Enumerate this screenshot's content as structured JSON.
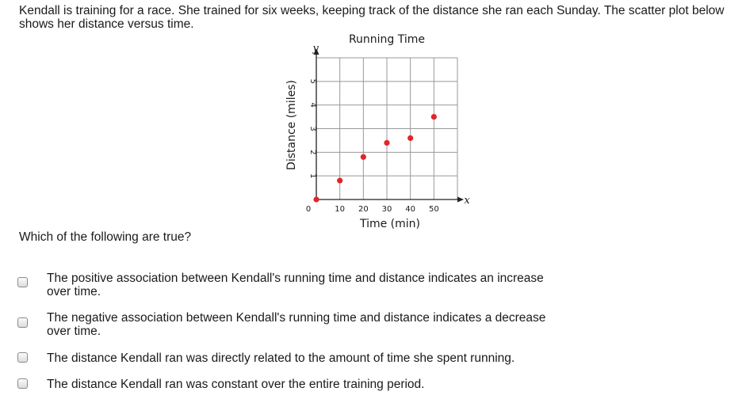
{
  "question": "Kendall is training for a race.  She trained for six weeks, keeping track of the distance she ran each Sunday.  The scatter plot below shows her distance versus time.",
  "prompt": "Which of the following are true?",
  "options": [
    "The positive association between Kendall's running time and distance indicates an increase over time.",
    "The negative association between Kendall's running time and distance indicates a decrease over time.",
    "The distance Kendall ran was directly related to the amount of time she spent running.",
    "The distance Kendall ran was constant over the entire training period."
  ],
  "colors": {
    "point": "#e0262a",
    "grid": "#999999",
    "axis": "#222222"
  },
  "chart_data": {
    "type": "scatter",
    "title": "Running Time",
    "xlabel": "Time (min)",
    "ylabel": "Distance (miles)",
    "x_var": "x",
    "y_var": "y",
    "xlim": [
      0,
      60
    ],
    "ylim": [
      0,
      6
    ],
    "x_ticks": [
      "0",
      "10",
      "20",
      "30",
      "40",
      "50"
    ],
    "y_ticks": [
      "1",
      "2",
      "3",
      "4",
      "5"
    ],
    "grid": true,
    "points": [
      {
        "x": 0,
        "y": 0
      },
      {
        "x": 10,
        "y": 0.8
      },
      {
        "x": 20,
        "y": 1.8
      },
      {
        "x": 30,
        "y": 2.4
      },
      {
        "x": 40,
        "y": 2.6
      },
      {
        "x": 50,
        "y": 3.5
      }
    ]
  }
}
